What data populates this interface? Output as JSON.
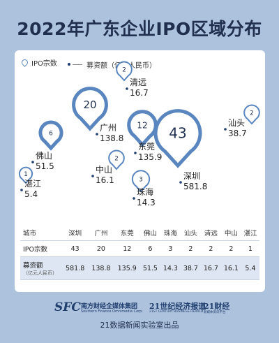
{
  "title": "2022年广东企业IPO区域分布",
  "legend": {
    "ipo": "IPO宗数",
    "amount": "募资额（亿元人民币）"
  },
  "chart_data": {
    "type": "table",
    "title": "2022年广东企业IPO区域分布",
    "categories": [
      "深圳",
      "广州",
      "东莞",
      "佛山",
      "珠海",
      "汕头",
      "清远",
      "中山",
      "湛江"
    ],
    "series": [
      {
        "name": "IPO宗数",
        "values": [
          43,
          20,
          12,
          6,
          3,
          2,
          2,
          2,
          1
        ]
      },
      {
        "name": "募资额（亿元人民币）",
        "values": [
          581.8,
          138.8,
          135.9,
          51.5,
          14.3,
          38.7,
          16.7,
          16.1,
          5.4
        ]
      }
    ]
  },
  "table": {
    "header_label": "城市",
    "row1_label": "IPO宗数",
    "row2_label": "募资额",
    "row2_sub": "（亿元人民币）",
    "values_display": {
      "counts": [
        "43",
        "20",
        "12",
        "6",
        "3",
        "2",
        "2",
        "2",
        "1"
      ],
      "amounts": [
        "581.8",
        "138.8",
        "135.9",
        "51.5",
        "14.3",
        "38.7",
        "16.7",
        "16.1",
        "5.4"
      ]
    }
  },
  "footer": {
    "sfc": "SFC",
    "sfc_cn": "南方财经全媒体集团",
    "sfc_en": "Southern Finance Omnimedia Corp.",
    "logo2": "21世纪经济报道",
    "logo2_en": "21ST CENTURY BUSINESS HERALD",
    "logo3": "21财经",
    "logo3_en": "新媒体资讯平台",
    "credit": "21数据新闻实验室出品"
  },
  "colors": {
    "background": "#adc2dd",
    "pin": "#5a86bf",
    "text_dark": "#1f2f4d"
  }
}
